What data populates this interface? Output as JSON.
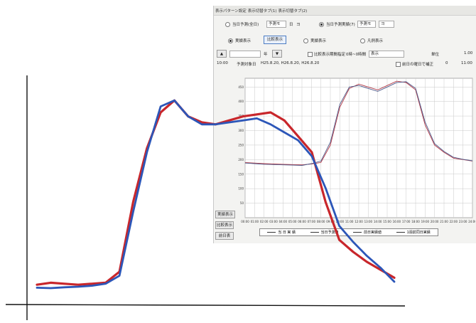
{
  "window": {
    "tabs": [
      "表示パターン設定",
      "表示切替タブ(1)",
      "表示切替タブ(2)"
    ],
    "option_a_label": "当日予測(全日)",
    "option_a_value": "予測モ",
    "option_a_unit": "日",
    "option_a_extra": "ヨ",
    "option_b_label": "当日予測実績(7)",
    "option_b_value": "予測モ",
    "option_b_extra": "ヨ",
    "mode_a_label": "実績表示",
    "mode_button_label": "比較表示",
    "mode_b_label": "実績表示",
    "mode_c_label": "凡例表示",
    "nav_up_label": "▲",
    "nav_date_label": "年",
    "nav_down_label": "▼",
    "nav_filter_label": "比較表示期間指定",
    "nav_select_label": "0時~0時間",
    "nav_select_value": "表示",
    "nav_right_a": "単位",
    "nav_right_b": "1.00",
    "info_left": "10:00",
    "info_label": "予測対象日",
    "info_value": "H25.8.20, H26.8.20, H26.8.20",
    "checkbox_label": "前日の曜日で補正",
    "info_right_a": "0",
    "info_right_b": "11:00",
    "side_buttons": [
      "実績表示",
      "比較表示",
      "前日表"
    ]
  },
  "colors": {
    "red_series": "#c8262b",
    "blue_series": "#2c56b8",
    "inner_red": "#b23a47",
    "inner_blue": "#4d5a8a",
    "grid": "#c9c9c9"
  },
  "chart_data": [
    {
      "type": "line",
      "x": [
        "00:00",
        "01:00",
        "02:00",
        "03:00",
        "04:00",
        "05:00",
        "06:00",
        "07:00",
        "08:00",
        "09:00",
        "10:00",
        "11:00",
        "12:00",
        "13:00",
        "14:00",
        "15:00",
        "16:00",
        "17:00",
        "18:00",
        "19:00",
        "20:00",
        "21:00",
        "22:00",
        "23:00",
        "24:00"
      ],
      "y_ticks": [
        50,
        100,
        150,
        200,
        250,
        300,
        350,
        400,
        450
      ],
      "ylim": [
        0,
        480
      ],
      "series": [
        {
          "values": [
            190,
            188,
            186,
            185,
            184,
            183,
            182,
            185,
            190,
            250,
            380,
            445,
            460,
            450,
            440,
            455,
            470,
            465,
            440,
            320,
            250,
            225,
            205,
            200,
            195
          ]
        },
        {
          "values": [
            188,
            186,
            184,
            183,
            182,
            181,
            180,
            186,
            195,
            260,
            390,
            450,
            455,
            445,
            435,
            450,
            465,
            468,
            445,
            330,
            255,
            228,
            208,
            201,
            196
          ]
        }
      ],
      "legend": [
        "当 日 実 績",
        "当日予測値",
        "前日実績値",
        "1週前同日実績"
      ]
    },
    {
      "type": "line",
      "series": [
        {
          "values": [
            0.035,
            0.045,
            0.04,
            0.035,
            0.04,
            0.045,
            0.1,
            0.45,
            0.72,
            0.9,
            0.96,
            0.88,
            0.85,
            0.84,
            0.86,
            0.88,
            0.89,
            0.9,
            0.86,
            0.78,
            0.7,
            0.45,
            0.26,
            0.2,
            0.15,
            0.11,
            0.07
          ]
        },
        {
          "values": [
            0.02,
            0.018,
            0.022,
            0.025,
            0.03,
            0.04,
            0.08,
            0.4,
            0.7,
            0.93,
            0.96,
            0.88,
            0.84,
            0.84,
            0.85,
            0.86,
            0.87,
            0.84,
            0.8,
            0.76,
            0.68,
            0.52,
            0.33,
            0.25,
            0.18,
            0.12,
            0.05
          ]
        }
      ]
    }
  ]
}
